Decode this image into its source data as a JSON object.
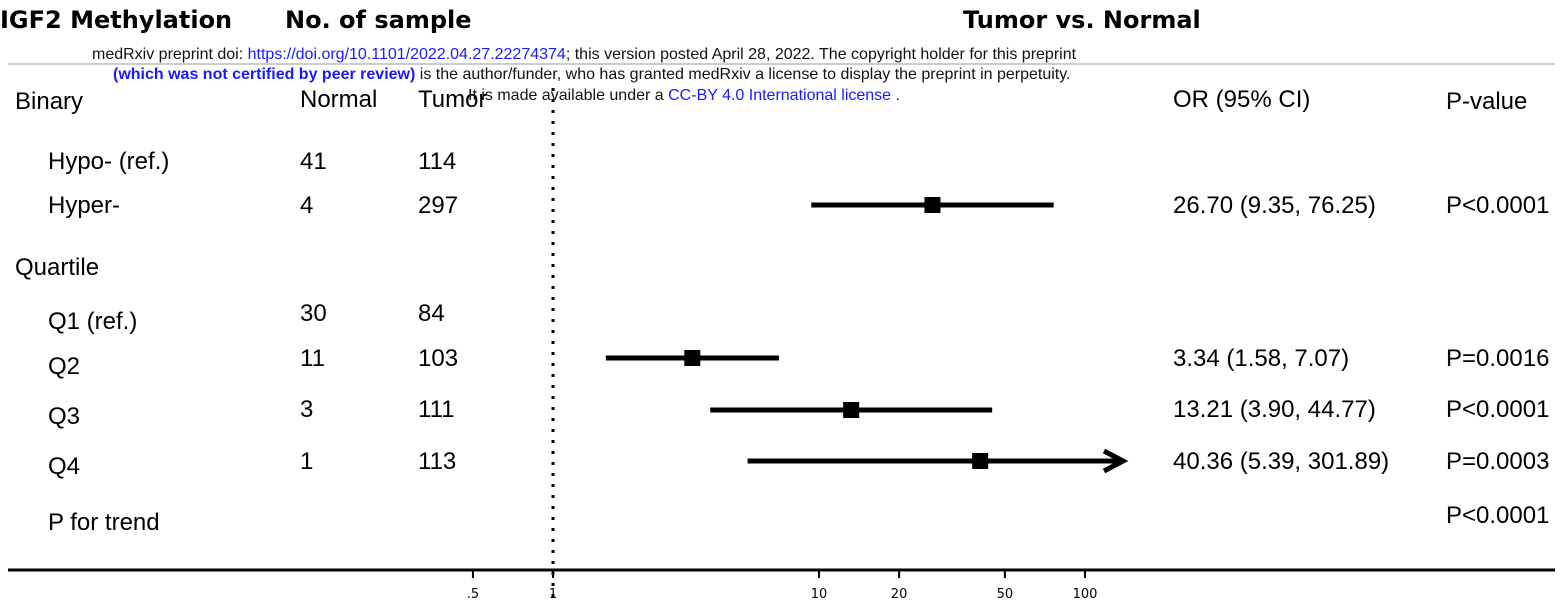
{
  "header": {
    "col1_title": "IGF2 Methylation",
    "col2_title": "No. of sample",
    "plot_title": "Tumor vs. Normal"
  },
  "preprint_banner": {
    "line1_prefix": "medRxiv preprint doi: ",
    "line1_link": "https://doi.org/10.1101/2022.04.27.22274374",
    "line1_suffix": "; this version posted April 28, 2022. The copyright holder for this preprint",
    "line2_bold": "(which was not certified by peer review)",
    "line2_rest": " is the author/funder, who has granted medRxiv a license to display the preprint in perpetuity.",
    "line3_prefix": "It is made available under a ",
    "line3_link": "CC-BY 4.0 International license",
    "line3_suffix": " ."
  },
  "columns": {
    "normal": "Normal",
    "tumor": "Tumor",
    "or_ci": "OR (95% CI)",
    "pvalue": "P-value"
  },
  "rows": [
    {
      "label": "Binary",
      "normal": "",
      "tumor": "",
      "or_text": "",
      "p_text": "",
      "section": true
    },
    {
      "label": "Hypo- (ref.)",
      "normal": "41",
      "tumor": "114",
      "or_text": "",
      "p_text": ""
    },
    {
      "label": "Hyper-",
      "normal": "4",
      "tumor": "297",
      "or_text": "26.70 (9.35, 76.25)",
      "p_text": "P<0.0001"
    },
    {
      "label": "Quartile",
      "normal": "",
      "tumor": "",
      "or_text": "",
      "p_text": "",
      "section": true
    },
    {
      "label": "Q1 (ref.)",
      "normal": "30",
      "tumor": "84",
      "or_text": "",
      "p_text": ""
    },
    {
      "label": "Q2",
      "normal": "11",
      "tumor": "103",
      "or_text": "3.34 (1.58, 7.07)",
      "p_text": "P=0.0016"
    },
    {
      "label": "Q3",
      "normal": "3",
      "tumor": "111",
      "or_text": "13.21 (3.90, 44.77)",
      "p_text": "P<0.0001"
    },
    {
      "label": "Q4",
      "normal": "1",
      "tumor": "113",
      "or_text": "40.36 (5.39, 301.89)",
      "p_text": "P=0.0003"
    },
    {
      "label": "P for trend",
      "normal": "",
      "tumor": "",
      "or_text": "",
      "p_text": "P<0.0001"
    }
  ],
  "chart_data": {
    "type": "forest",
    "title": "Tumor vs. Normal",
    "x_scale": "log",
    "x_ticks": [
      0.5,
      1,
      10,
      20,
      50,
      100
    ],
    "x_tick_labels": [
      ".5",
      "1",
      "10",
      "20",
      "50",
      "100"
    ],
    "reference_line": 1,
    "xlim": [
      0.5,
      100
    ],
    "series": [
      {
        "label": "Hyper-",
        "or": 26.7,
        "lower": 9.35,
        "upper": 76.25
      },
      {
        "label": "Q2",
        "or": 3.34,
        "lower": 1.58,
        "upper": 7.07
      },
      {
        "label": "Q3",
        "or": 13.21,
        "lower": 3.9,
        "upper": 44.77
      },
      {
        "label": "Q4",
        "or": 40.36,
        "lower": 5.39,
        "upper": 301.89,
        "truncated_upper": true
      }
    ]
  },
  "colors": {
    "link": "#1a1aff",
    "marker": "#000000"
  }
}
